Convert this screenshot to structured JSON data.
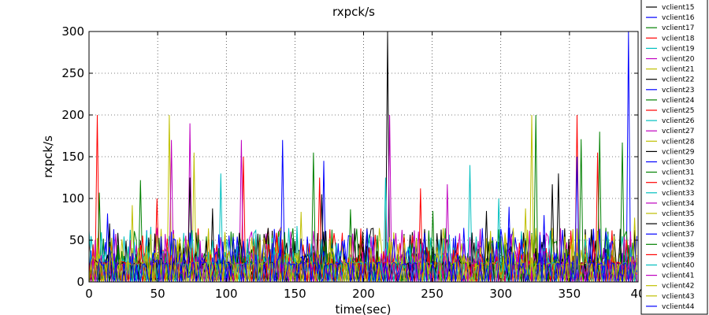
{
  "chart_data": {
    "type": "line",
    "title": "rxpck/s",
    "xlabel": "time(sec)",
    "ylabel": "rxpck/s",
    "xlim": [
      0,
      400
    ],
    "ylim": [
      0,
      300
    ],
    "xticks": [
      "0",
      "50",
      "100",
      "150",
      "200",
      "250",
      "300",
      "350",
      "40"
    ],
    "yticks": [
      "0",
      "50",
      "100",
      "150",
      "200",
      "250",
      "300"
    ],
    "grid": true,
    "legend_position": "top-right",
    "series": [
      {
        "name": "vclient15",
        "color": "#000000",
        "peaks": [
          [
            218,
            300
          ],
          [
            90,
            88
          ]
        ]
      },
      {
        "name": "vclient16",
        "color": "#0000ff",
        "peaks": [
          [
            393,
            300
          ],
          [
            141,
            170
          ],
          [
            171,
            145
          ]
        ]
      },
      {
        "name": "vclient17",
        "color": "#008000",
        "peaks": [
          [
            326,
            200
          ],
          [
            38,
            122
          ],
          [
            164,
            155
          ]
        ]
      },
      {
        "name": "vclient18",
        "color": "#ff0000",
        "peaks": [
          [
            6,
            200
          ],
          [
            112,
            150
          ],
          [
            356,
            200
          ],
          [
            370,
            155
          ]
        ]
      },
      {
        "name": "vclient19",
        "color": "#00bfbf",
        "peaks": [
          [
            96,
            130
          ],
          [
            278,
            140
          ]
        ]
      },
      {
        "name": "vclient20",
        "color": "#bf00bf",
        "peaks": [
          [
            73,
            190
          ],
          [
            219,
            200
          ],
          [
            111,
            170
          ]
        ]
      },
      {
        "name": "vclient21",
        "color": "#bfbf00",
        "peaks": [
          [
            58,
            200
          ],
          [
            322,
            200
          ],
          [
            76,
            155
          ]
        ]
      },
      {
        "name": "vclient22",
        "color": "#000000",
        "peaks": [
          [
            74,
            125
          ],
          [
            342,
            130
          ]
        ]
      },
      {
        "name": "vclient23",
        "color": "#0000ff",
        "peaks": [
          [
            14,
            82
          ],
          [
            400,
            55
          ]
        ]
      },
      {
        "name": "vclient24",
        "color": "#008000",
        "peaks": [
          [
            372,
            180
          ],
          [
            8,
            107
          ]
        ]
      },
      {
        "name": "vclient25",
        "color": "#ff0000",
        "peaks": [
          [
            241,
            112
          ],
          [
            50,
            100
          ]
        ]
      },
      {
        "name": "vclient26",
        "color": "#00bfbf",
        "peaks": [
          [
            216,
            125
          ],
          [
            298,
            100
          ]
        ]
      },
      {
        "name": "vclient27",
        "color": "#bf00bf",
        "peaks": [
          [
            261,
            117
          ],
          [
            60,
            170
          ]
        ]
      },
      {
        "name": "vclient28",
        "color": "#bfbf00",
        "peaks": [
          [
            32,
            92
          ],
          [
            155,
            84
          ]
        ]
      },
      {
        "name": "vclient29",
        "color": "#000000",
        "peaks": [
          [
            338,
            117
          ],
          [
            170,
            105
          ]
        ]
      },
      {
        "name": "vclient30",
        "color": "#0000ff",
        "peaks": [
          [
            60,
            60
          ],
          [
            230,
            45
          ]
        ]
      },
      {
        "name": "vclient31",
        "color": "#008000",
        "peaks": [
          [
            388,
            167
          ],
          [
            190,
            87
          ]
        ]
      },
      {
        "name": "vclient32",
        "color": "#ff0000",
        "peaks": [
          [
            168,
            125
          ],
          [
            198,
            64
          ]
        ]
      },
      {
        "name": "vclient33",
        "color": "#00bfbf",
        "peaks": [
          [
            45,
            66
          ],
          [
            151,
            67
          ]
        ]
      },
      {
        "name": "vclient34",
        "color": "#bf00bf",
        "peaks": [
          [
            200,
            36
          ],
          [
            312,
            30
          ]
        ]
      },
      {
        "name": "vclient35",
        "color": "#bfbf00",
        "peaks": [
          [
            65,
            48
          ],
          [
            397,
            77
          ]
        ]
      },
      {
        "name": "vclient36",
        "color": "#000000",
        "peaks": [
          [
            15,
            70
          ],
          [
            289,
            85
          ]
        ]
      },
      {
        "name": "vclient37",
        "color": "#0000ff",
        "peaks": [
          [
            356,
            150
          ],
          [
            62,
            52
          ]
        ]
      },
      {
        "name": "vclient38",
        "color": "#008000",
        "peaks": [
          [
            358,
            171
          ],
          [
            250,
            85
          ]
        ]
      },
      {
        "name": "vclient39",
        "color": "#ff0000",
        "peaks": [
          [
            3,
            45
          ],
          [
            44,
            30
          ]
        ]
      },
      {
        "name": "vclient40",
        "color": "#00bfbf",
        "peaks": [
          [
            116,
            52
          ],
          [
            255,
            51
          ]
        ]
      },
      {
        "name": "vclient41",
        "color": "#bf00bf",
        "peaks": [
          [
            136,
            35
          ],
          [
            216,
            40
          ]
        ]
      },
      {
        "name": "vclient42",
        "color": "#bfbf00",
        "peaks": [
          [
            124,
            48
          ],
          [
            318,
            88
          ]
        ]
      },
      {
        "name": "vclient43",
        "color": "#bfbf00",
        "peaks": [
          [
            105,
            50
          ],
          [
            382,
            55
          ]
        ]
      },
      {
        "name": "vclient44",
        "color": "#0000ff",
        "peaks": [
          [
            306,
            90
          ],
          [
            331,
            80
          ]
        ]
      }
    ]
  }
}
